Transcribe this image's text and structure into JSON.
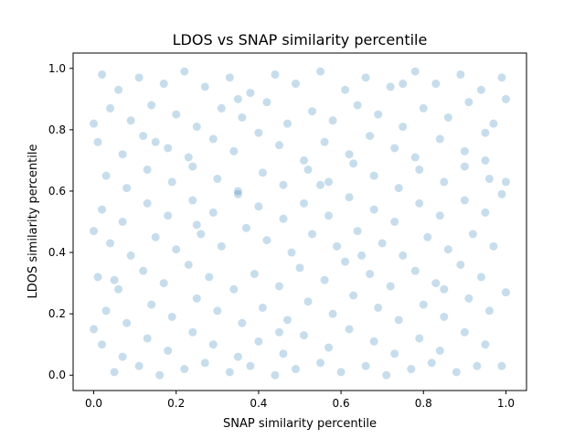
{
  "chart_data": {
    "type": "scatter",
    "title": "LDOS vs SNAP similarity percentile",
    "xlabel": "SNAP similarity percentile",
    "ylabel": "LDOS similarity percentile",
    "xlim": [
      -0.05,
      1.05
    ],
    "ylim": [
      -0.05,
      1.05
    ],
    "xticks": [
      0.0,
      0.2,
      0.4,
      0.6,
      0.8,
      1.0
    ],
    "yticks": [
      0.0,
      0.2,
      0.4,
      0.6,
      0.8,
      1.0
    ],
    "xtick_labels": [
      "0.0",
      "0.2",
      "0.4",
      "0.6",
      "0.8",
      "1.0"
    ],
    "ytick_labels": [
      "0.0",
      "0.2",
      "0.4",
      "0.6",
      "0.8",
      "1.0"
    ],
    "grid": false,
    "legend": "none",
    "marker_color": "#1f77b4",
    "marker_alpha": 0.25,
    "points": [
      [
        0.02,
        0.98
      ],
      [
        0.06,
        0.93
      ],
      [
        0.11,
        0.97
      ],
      [
        0.17,
        0.95
      ],
      [
        0.22,
        0.99
      ],
      [
        0.27,
        0.94
      ],
      [
        0.33,
        0.97
      ],
      [
        0.38,
        0.92
      ],
      [
        0.44,
        0.98
      ],
      [
        0.49,
        0.95
      ],
      [
        0.55,
        0.99
      ],
      [
        0.61,
        0.93
      ],
      [
        0.66,
        0.97
      ],
      [
        0.72,
        0.94
      ],
      [
        0.78,
        0.99
      ],
      [
        0.83,
        0.95
      ],
      [
        0.89,
        0.98
      ],
      [
        0.94,
        0.93
      ],
      [
        0.99,
        0.97
      ],
      [
        0.04,
        0.87
      ],
      [
        0.09,
        0.83
      ],
      [
        0.14,
        0.88
      ],
      [
        0.2,
        0.85
      ],
      [
        0.25,
        0.81
      ],
      [
        0.31,
        0.87
      ],
      [
        0.36,
        0.84
      ],
      [
        0.42,
        0.89
      ],
      [
        0.47,
        0.82
      ],
      [
        0.53,
        0.86
      ],
      [
        0.58,
        0.83
      ],
      [
        0.64,
        0.88
      ],
      [
        0.69,
        0.85
      ],
      [
        0.75,
        0.81
      ],
      [
        0.8,
        0.87
      ],
      [
        0.86,
        0.84
      ],
      [
        0.91,
        0.89
      ],
      [
        0.97,
        0.82
      ],
      [
        0.01,
        0.76
      ],
      [
        0.07,
        0.72
      ],
      [
        0.12,
        0.78
      ],
      [
        0.18,
        0.74
      ],
      [
        0.23,
        0.71
      ],
      [
        0.29,
        0.77
      ],
      [
        0.34,
        0.73
      ],
      [
        0.4,
        0.79
      ],
      [
        0.45,
        0.75
      ],
      [
        0.51,
        0.7
      ],
      [
        0.56,
        0.76
      ],
      [
        0.62,
        0.72
      ],
      [
        0.67,
        0.78
      ],
      [
        0.73,
        0.74
      ],
      [
        0.78,
        0.71
      ],
      [
        0.84,
        0.77
      ],
      [
        0.9,
        0.73
      ],
      [
        0.95,
        0.79
      ],
      [
        0.03,
        0.65
      ],
      [
        0.08,
        0.61
      ],
      [
        0.13,
        0.67
      ],
      [
        0.19,
        0.63
      ],
      [
        0.24,
        0.68
      ],
      [
        0.3,
        0.64
      ],
      [
        0.35,
        0.6
      ],
      [
        0.41,
        0.66
      ],
      [
        0.46,
        0.62
      ],
      [
        0.52,
        0.67
      ],
      [
        0.57,
        0.63
      ],
      [
        0.63,
        0.69
      ],
      [
        0.68,
        0.65
      ],
      [
        0.74,
        0.61
      ],
      [
        0.79,
        0.67
      ],
      [
        0.85,
        0.63
      ],
      [
        0.9,
        0.68
      ],
      [
        0.96,
        0.64
      ],
      [
        0.02,
        0.54
      ],
      [
        0.07,
        0.5
      ],
      [
        0.13,
        0.56
      ],
      [
        0.18,
        0.52
      ],
      [
        0.24,
        0.57
      ],
      [
        0.29,
        0.53
      ],
      [
        0.35,
        0.59
      ],
      [
        0.4,
        0.55
      ],
      [
        0.46,
        0.51
      ],
      [
        0.51,
        0.56
      ],
      [
        0.57,
        0.52
      ],
      [
        0.62,
        0.58
      ],
      [
        0.68,
        0.54
      ],
      [
        0.73,
        0.5
      ],
      [
        0.79,
        0.56
      ],
      [
        0.84,
        0.52
      ],
      [
        0.9,
        0.57
      ],
      [
        0.95,
        0.53
      ],
      [
        0.99,
        0.59
      ],
      [
        0.04,
        0.43
      ],
      [
        0.09,
        0.39
      ],
      [
        0.15,
        0.45
      ],
      [
        0.2,
        0.41
      ],
      [
        0.26,
        0.46
      ],
      [
        0.31,
        0.42
      ],
      [
        0.37,
        0.48
      ],
      [
        0.42,
        0.44
      ],
      [
        0.48,
        0.4
      ],
      [
        0.53,
        0.46
      ],
      [
        0.59,
        0.42
      ],
      [
        0.64,
        0.47
      ],
      [
        0.7,
        0.43
      ],
      [
        0.75,
        0.39
      ],
      [
        0.81,
        0.45
      ],
      [
        0.86,
        0.41
      ],
      [
        0.92,
        0.46
      ],
      [
        0.97,
        0.42
      ],
      [
        0.01,
        0.32
      ],
      [
        0.06,
        0.28
      ],
      [
        0.12,
        0.34
      ],
      [
        0.17,
        0.3
      ],
      [
        0.23,
        0.36
      ],
      [
        0.28,
        0.32
      ],
      [
        0.34,
        0.28
      ],
      [
        0.39,
        0.33
      ],
      [
        0.45,
        0.29
      ],
      [
        0.5,
        0.35
      ],
      [
        0.56,
        0.31
      ],
      [
        0.61,
        0.37
      ],
      [
        0.67,
        0.33
      ],
      [
        0.72,
        0.29
      ],
      [
        0.78,
        0.34
      ],
      [
        0.83,
        0.3
      ],
      [
        0.89,
        0.36
      ],
      [
        0.94,
        0.32
      ],
      [
        0.03,
        0.21
      ],
      [
        0.08,
        0.17
      ],
      [
        0.14,
        0.23
      ],
      [
        0.19,
        0.19
      ],
      [
        0.25,
        0.25
      ],
      [
        0.3,
        0.21
      ],
      [
        0.36,
        0.17
      ],
      [
        0.41,
        0.22
      ],
      [
        0.47,
        0.18
      ],
      [
        0.52,
        0.24
      ],
      [
        0.58,
        0.2
      ],
      [
        0.63,
        0.26
      ],
      [
        0.69,
        0.22
      ],
      [
        0.74,
        0.18
      ],
      [
        0.8,
        0.23
      ],
      [
        0.85,
        0.19
      ],
      [
        0.91,
        0.25
      ],
      [
        0.96,
        0.21
      ],
      [
        0.02,
        0.1
      ],
      [
        0.07,
        0.06
      ],
      [
        0.13,
        0.12
      ],
      [
        0.18,
        0.08
      ],
      [
        0.24,
        0.14
      ],
      [
        0.29,
        0.1
      ],
      [
        0.35,
        0.06
      ],
      [
        0.4,
        0.11
      ],
      [
        0.46,
        0.07
      ],
      [
        0.51,
        0.13
      ],
      [
        0.57,
        0.09
      ],
      [
        0.62,
        0.15
      ],
      [
        0.68,
        0.11
      ],
      [
        0.73,
        0.07
      ],
      [
        0.79,
        0.12
      ],
      [
        0.84,
        0.08
      ],
      [
        0.9,
        0.14
      ],
      [
        0.95,
        0.1
      ],
      [
        0.99,
        0.03
      ],
      [
        0.05,
        0.01
      ],
      [
        0.11,
        0.03
      ],
      [
        0.16,
        0.0
      ],
      [
        0.22,
        0.02
      ],
      [
        0.27,
        0.04
      ],
      [
        0.33,
        0.01
      ],
      [
        0.38,
        0.03
      ],
      [
        0.44,
        0.0
      ],
      [
        0.49,
        0.02
      ],
      [
        0.55,
        0.04
      ],
      [
        0.6,
        0.01
      ],
      [
        0.66,
        0.03
      ],
      [
        0.71,
        0.0
      ],
      [
        0.77,
        0.02
      ],
      [
        0.82,
        0.04
      ],
      [
        0.88,
        0.01
      ],
      [
        0.93,
        0.03
      ],
      [
        0.0,
        0.47
      ],
      [
        1.0,
        0.27
      ],
      [
        0.0,
        0.82
      ],
      [
        1.0,
        0.63
      ],
      [
        0.0,
        0.15
      ],
      [
        1.0,
        0.9
      ],
      [
        0.05,
        0.31
      ],
      [
        0.15,
        0.76
      ],
      [
        0.25,
        0.49
      ],
      [
        0.35,
        0.9
      ],
      [
        0.45,
        0.14
      ],
      [
        0.55,
        0.62
      ],
      [
        0.65,
        0.39
      ],
      [
        0.75,
        0.95
      ],
      [
        0.85,
        0.28
      ],
      [
        0.95,
        0.7
      ]
    ]
  }
}
